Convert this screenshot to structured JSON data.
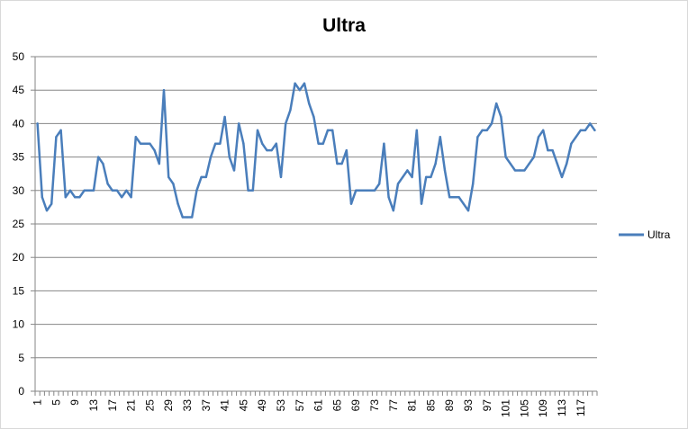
{
  "chart_data": {
    "type": "line",
    "title": "Ultra",
    "xlabel": "",
    "ylabel": "",
    "ylim": [
      0,
      50
    ],
    "y_ticks": [
      0,
      5,
      10,
      15,
      20,
      25,
      30,
      35,
      40,
      45,
      50
    ],
    "x_tick_labels": [
      "1",
      "5",
      "9",
      "13",
      "17",
      "21",
      "25",
      "29",
      "33",
      "37",
      "41",
      "45",
      "49",
      "53",
      "57",
      "61",
      "65",
      "69",
      "73",
      "77",
      "81",
      "85",
      "89",
      "93",
      "97",
      "101",
      "105",
      "109",
      "113",
      "117"
    ],
    "grid": "horizontal",
    "legend_position": "right",
    "series_color": "#4a7ebb",
    "series": [
      {
        "name": "Ultra",
        "x": [
          1,
          2,
          3,
          4,
          5,
          6,
          7,
          8,
          9,
          10,
          11,
          12,
          13,
          14,
          15,
          16,
          17,
          18,
          19,
          20,
          21,
          22,
          23,
          24,
          25,
          26,
          27,
          28,
          29,
          30,
          31,
          32,
          33,
          34,
          35,
          36,
          37,
          38,
          39,
          40,
          41,
          42,
          43,
          44,
          45,
          46,
          47,
          48,
          49,
          50,
          51,
          52,
          53,
          54,
          55,
          56,
          57,
          58,
          59,
          60,
          61,
          62,
          63,
          64,
          65,
          66,
          67,
          68,
          69,
          70,
          71,
          72,
          73,
          74,
          75,
          76,
          77,
          78,
          79,
          80,
          81,
          82,
          83,
          84,
          85,
          86,
          87,
          88,
          89,
          90,
          91,
          92,
          93,
          94,
          95,
          96,
          97,
          98,
          99,
          100,
          101,
          102,
          103,
          104,
          105,
          106,
          107,
          108,
          109,
          110,
          111,
          112,
          113,
          114,
          115,
          116,
          117,
          118,
          119,
          120
        ],
        "values": [
          40,
          29,
          27,
          28,
          38,
          39,
          29,
          30,
          29,
          29,
          30,
          30,
          30,
          35,
          34,
          31,
          30,
          30,
          29,
          30,
          29,
          38,
          37,
          37,
          37,
          36,
          34,
          45,
          32,
          31,
          28,
          26,
          26,
          26,
          30,
          32,
          32,
          35,
          37,
          37,
          41,
          35,
          33,
          40,
          37,
          30,
          30,
          39,
          37,
          36,
          36,
          37,
          32,
          40,
          42,
          46,
          45,
          46,
          43,
          41,
          37,
          37,
          39,
          39,
          34,
          34,
          36,
          28,
          30,
          30,
          30,
          30,
          30,
          31,
          37,
          29,
          27,
          31,
          32,
          33,
          32,
          39,
          28,
          32,
          32,
          34,
          38,
          33,
          29,
          29,
          29,
          28,
          27,
          31,
          38,
          39,
          39,
          40,
          43,
          41,
          35,
          34,
          33,
          33,
          33,
          34,
          35,
          38,
          39,
          36,
          36,
          34,
          32,
          34,
          37,
          38,
          39,
          39,
          40,
          39
        ]
      }
    ]
  }
}
